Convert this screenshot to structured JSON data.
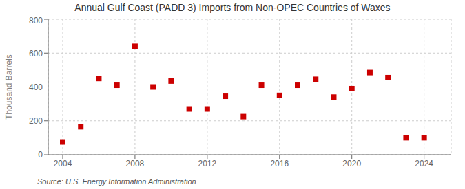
{
  "chart_data": {
    "type": "scatter",
    "title": "Annual Gulf Coast (PADD 3) Imports from Non-OPEC Countries of Waxes",
    "ylabel": "Thousand Barrels",
    "annotations": [
      "Source: U.S. Energy Information Administration"
    ],
    "x": [
      2004,
      2005,
      2006,
      2007,
      2008,
      2009,
      2010,
      2011,
      2012,
      2013,
      2014,
      2015,
      2016,
      2017,
      2018,
      2019,
      2020,
      2021,
      2022,
      2023,
      2024
    ],
    "values": [
      75,
      165,
      450,
      410,
      640,
      400,
      435,
      270,
      270,
      345,
      225,
      410,
      350,
      410,
      445,
      340,
      390,
      485,
      455,
      100,
      100
    ],
    "color": "#cc0000",
    "marker": "square",
    "xlim": [
      2003.2,
      2025.5
    ],
    "xticks": [
      2004,
      2008,
      2012,
      2016,
      2020,
      2024
    ],
    "ylim": [
      0,
      800
    ],
    "yticks": [
      0,
      200,
      400,
      600,
      800
    ],
    "grid": true
  }
}
